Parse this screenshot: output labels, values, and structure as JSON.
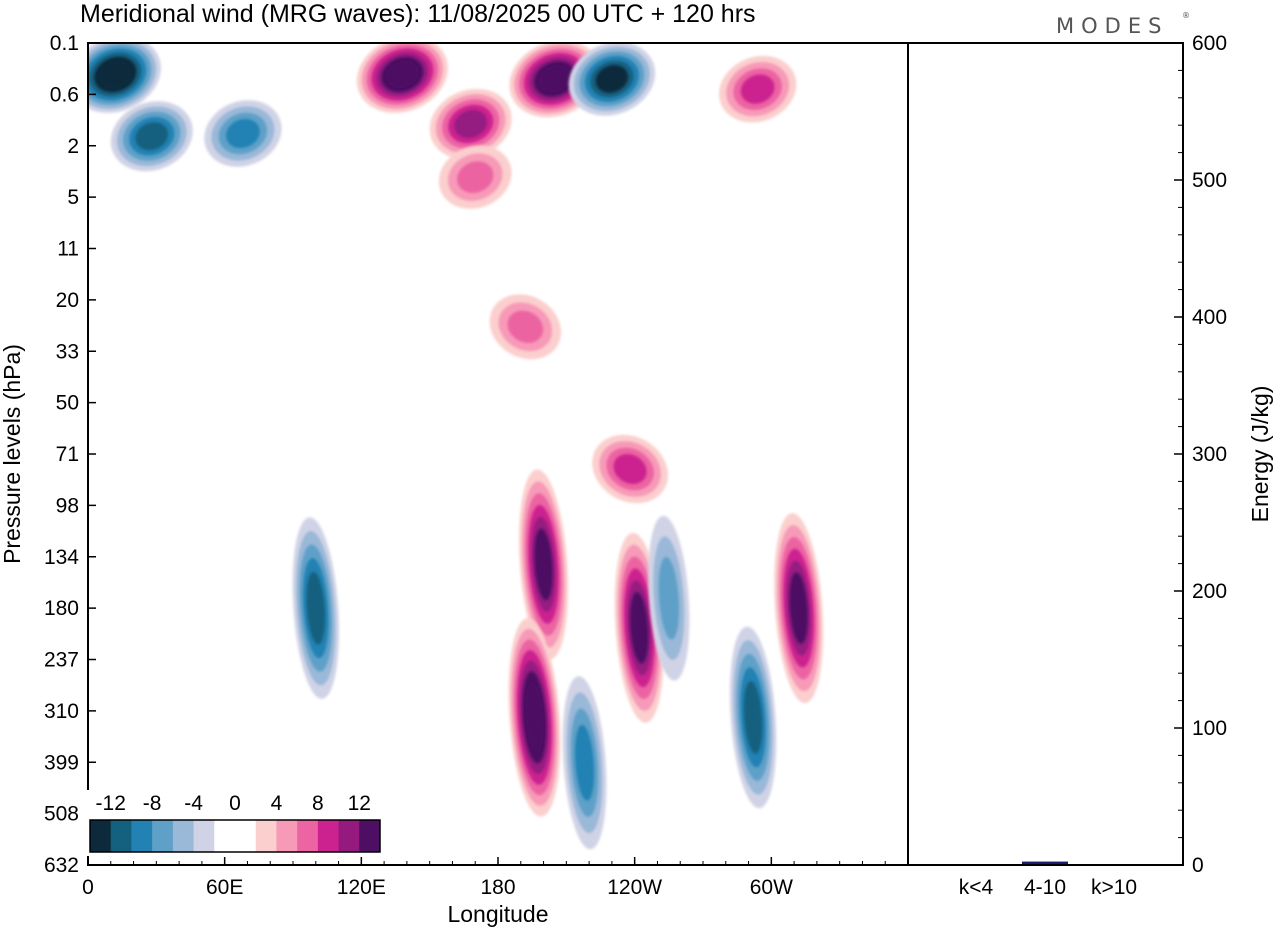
{
  "title": "Meridional wind (MRG waves):  11/08/2025  00 UTC  + 120 hrs",
  "brand": "MODES",
  "brand_mark": "®",
  "colors": {
    "frame": "#000000",
    "energy_bar": "#1a1a6e"
  },
  "chart_data": [
    {
      "type": "heatmap",
      "title": "Meridional wind (MRG waves):  11/08/2025  00 UTC  + 120 hrs",
      "xlabel": "Longitude",
      "ylabel": "Pressure levels (hPa)",
      "x_ticks": [
        "0",
        "60E",
        "120E",
        "180",
        "120W",
        "60W"
      ],
      "y_ticks": [
        "0.1",
        "0.6",
        "2",
        "5",
        "11",
        "20",
        "33",
        "50",
        "71",
        "98",
        "134",
        "180",
        "237",
        "310",
        "399",
        "508",
        "632"
      ],
      "colorbar": {
        "tick_labels": [
          "-12",
          "-8",
          "-4",
          "0",
          "4",
          "8",
          "12"
        ],
        "colors": [
          "#0c2a3c",
          "#14607f",
          "#2282b4",
          "#5fa0c8",
          "#9ab8d8",
          "#d0d3e6",
          "#ffffff",
          "#ffffff",
          "#fbcfcd",
          "#f79ab8",
          "#ec64a2",
          "#cc2290",
          "#951a80",
          "#4e0e63"
        ]
      },
      "features": [
        {
          "lon": 12,
          "level": 0.3,
          "value": -14
        },
        {
          "lon": 28,
          "level": 1.6,
          "value": -10
        },
        {
          "lon": 68,
          "level": 1.5,
          "value": -7
        },
        {
          "lon": 138,
          "level": 0.3,
          "value": 13
        },
        {
          "lon": 168,
          "level": 1.2,
          "value": 10
        },
        {
          "lon": 170,
          "level": 3.5,
          "value": 6
        },
        {
          "lon": 205,
          "level": 0.35,
          "value": 14
        },
        {
          "lon": 230,
          "level": 0.35,
          "value": -12
        },
        {
          "lon": 294,
          "level": 0.5,
          "value": 8
        },
        {
          "lon": 192,
          "level": 26,
          "value": 5
        },
        {
          "lon": 238,
          "level": 78,
          "value": 8
        },
        {
          "lon": 200,
          "level": 140,
          "value": 12
        },
        {
          "lon": 196,
          "level": 320,
          "value": 14
        },
        {
          "lon": 242,
          "level": 200,
          "value": 11
        },
        {
          "lon": 312,
          "level": 180,
          "value": 11
        },
        {
          "lon": 100,
          "level": 180,
          "value": -10
        },
        {
          "lon": 218,
          "level": 400,
          "value": -8
        },
        {
          "lon": 292,
          "level": 320,
          "value": -9
        },
        {
          "lon": 255,
          "level": 170,
          "value": -6
        }
      ]
    },
    {
      "type": "bar",
      "ylabel": "Energy (J/kg)",
      "categories": [
        "k<4",
        "4-10",
        "k>10"
      ],
      "values": [
        0.5,
        2.5,
        0.3
      ],
      "ylim": [
        0,
        600
      ],
      "y_ticks": [
        "0",
        "100",
        "200",
        "300",
        "400",
        "500",
        "600"
      ]
    }
  ]
}
